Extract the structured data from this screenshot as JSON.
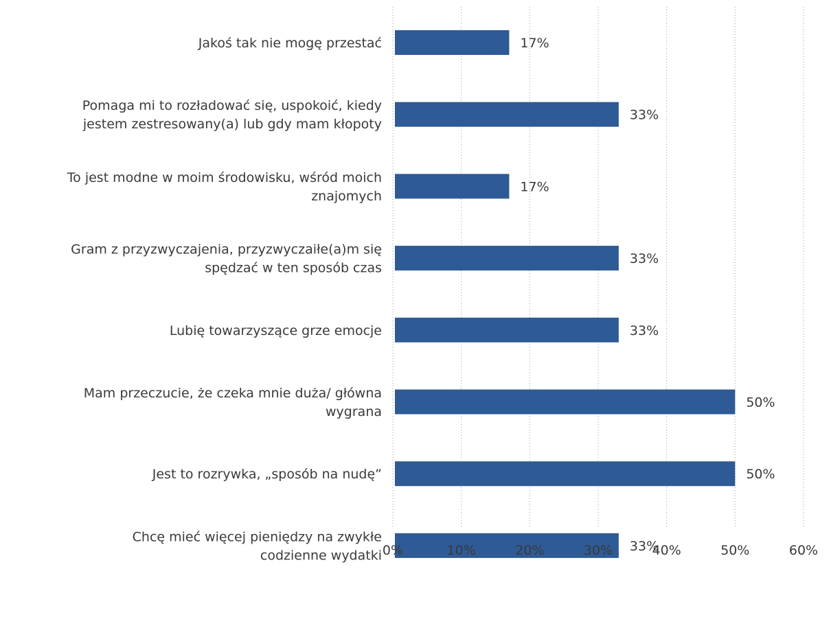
{
  "chart_data": {
    "type": "bar",
    "orientation": "horizontal",
    "categories": [
      [
        "Jakoś tak nie mogę przestać"
      ],
      [
        "Pomaga mi to rozładować się, uspokoić, kiedy",
        "jestem zestresowany(a) lub gdy mam kłopoty"
      ],
      [
        "To jest modne w moim środowisku, wśród moich",
        "znajomych"
      ],
      [
        "Gram z przyzwyczajenia, przyzwyczaiłe(a)m się",
        "spędzać w ten sposób czas"
      ],
      [
        "Lubię towarzyszące grze emocje"
      ],
      [
        "Mam przeczucie, że czeka mnie duża/ główna",
        "wygrana"
      ],
      [
        "Jest to rozrywka, „sposób na nudę”"
      ],
      [
        "Chcę mieć więcej pieniędzy na zwykłe",
        "codzienne wydatki"
      ]
    ],
    "values": [
      17,
      33,
      17,
      33,
      33,
      50,
      50,
      33
    ],
    "value_labels": [
      "17%",
      "33%",
      "17%",
      "33%",
      "33%",
      "50%",
      "50%",
      "33%"
    ],
    "xlim": [
      0,
      60
    ],
    "x_ticks": [
      "0%",
      "10%",
      "20%",
      "30%",
      "40%",
      "50%",
      "60%"
    ],
    "grid": true,
    "bar_color": "#2e5a96",
    "title": "",
    "xlabel": "",
    "ylabel": ""
  }
}
